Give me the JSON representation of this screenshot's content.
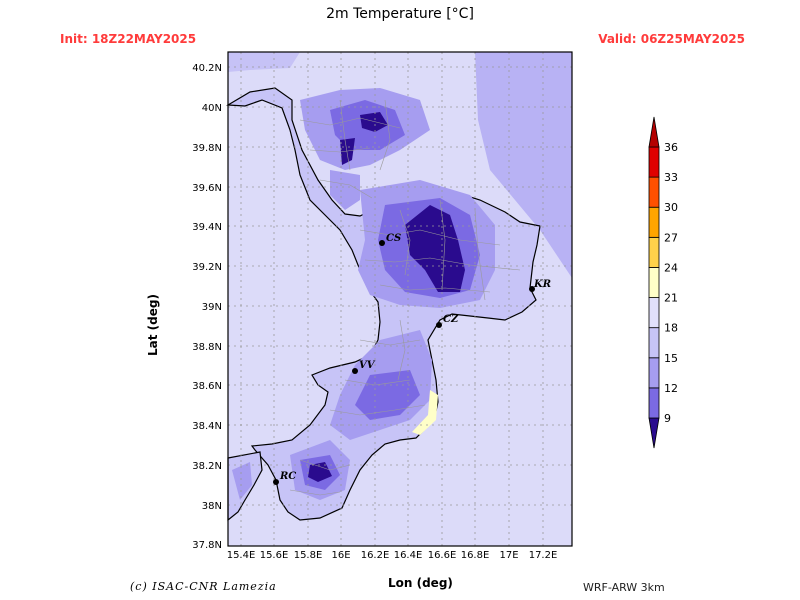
{
  "header": {
    "title": "2m Temperature [°C]",
    "init": "Init: 18Z22MAY2025",
    "valid": "Valid: 06Z25MAY2025"
  },
  "axes": {
    "xlabel": "Lon (deg)",
    "ylabel": "Lat (deg)",
    "lon_ticks": [
      "15.4E",
      "15.6E",
      "15.8E",
      "16E",
      "16.2E",
      "16.4E",
      "16.6E",
      "16.8E",
      "17E",
      "17.2E"
    ],
    "lat_ticks": [
      "40.2N",
      "40N",
      "39.8N",
      "39.6N",
      "39.4N",
      "39.2N",
      "39N",
      "38.8N",
      "38.6N",
      "38.4N",
      "38.2N",
      "38N",
      "37.8N"
    ]
  },
  "colorbar": {
    "levels": [
      "9",
      "12",
      "15",
      "18",
      "21",
      "24",
      "27",
      "30",
      "33",
      "36"
    ],
    "colors": [
      "#2a0b8e",
      "#7b6ae3",
      "#a69df0",
      "#c7c4f7",
      "#e1e0fb",
      "#ffffc8",
      "#ffd24a",
      "#ffa500",
      "#ff5000",
      "#e00000",
      "#b40000"
    ]
  },
  "cities": [
    {
      "label": "CS"
    },
    {
      "label": "KR"
    },
    {
      "label": "CZ"
    },
    {
      "label": "VV"
    },
    {
      "label": "RC"
    }
  ],
  "footer": {
    "credit": "(c) ISAC-CNR Lamezia",
    "model": "WRF-ARW 3km"
  }
}
